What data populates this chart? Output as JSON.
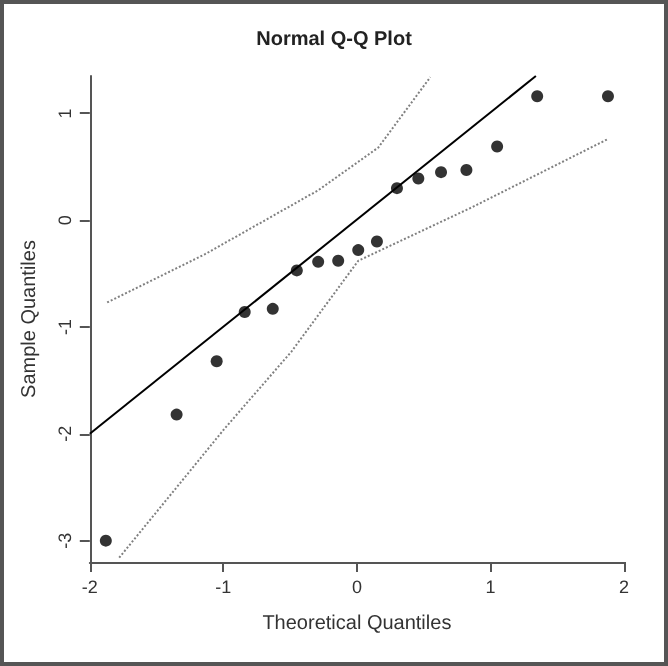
{
  "chart_data": {
    "type": "scatter",
    "title": "Normal Q-Q Plot",
    "xlabel": "Theoretical Quantiles",
    "ylabel": "Sample Quantiles",
    "xlim": [
      -2,
      2
    ],
    "xticks": [
      -2,
      -1,
      0,
      1,
      2
    ],
    "ylim": [
      -3.2,
      1.35
    ],
    "yticks": [
      -3,
      -2,
      -1,
      0,
      1
    ],
    "grid": false,
    "series": [
      {
        "color": "#000000",
        "marker": "circle",
        "x": [
          -1.88,
          -1.35,
          -1.05,
          -0.84,
          -0.63,
          -0.45,
          -0.29,
          -0.14,
          0.01,
          0.15,
          0.3,
          0.46,
          0.63,
          0.82,
          1.05,
          1.35,
          1.88
        ],
        "values": [
          -3.0,
          -1.82,
          -1.32,
          -0.86,
          -0.83,
          -0.47,
          -0.39,
          -0.38,
          -0.28,
          -0.2,
          0.3,
          0.39,
          0.45,
          0.47,
          0.69,
          1.16,
          1.16
        ]
      },
      {
        "type": "line",
        "color": "#000000",
        "line_style": "solid",
        "marker": "none",
        "x": [
          -2,
          1.34
        ],
        "values": [
          -2,
          1.35
        ]
      },
      {
        "type": "line",
        "color": "#808080",
        "line_style": "dotted",
        "marker": "none",
        "x": [
          -1.87,
          -1.14,
          -0.29,
          0.16,
          0.55
        ],
        "values": [
          -0.77,
          -0.32,
          0.28,
          0.68,
          1.34
        ]
      },
      {
        "type": "line",
        "color": "#808080",
        "line_style": "dotted",
        "marker": "none",
        "x": [
          -1.78,
          -0.99,
          -0.49,
          0.01,
          0.86,
          1.88
        ],
        "values": [
          -3.16,
          -1.95,
          -1.23,
          -0.38,
          0.12,
          0.76
        ]
      }
    ]
  }
}
